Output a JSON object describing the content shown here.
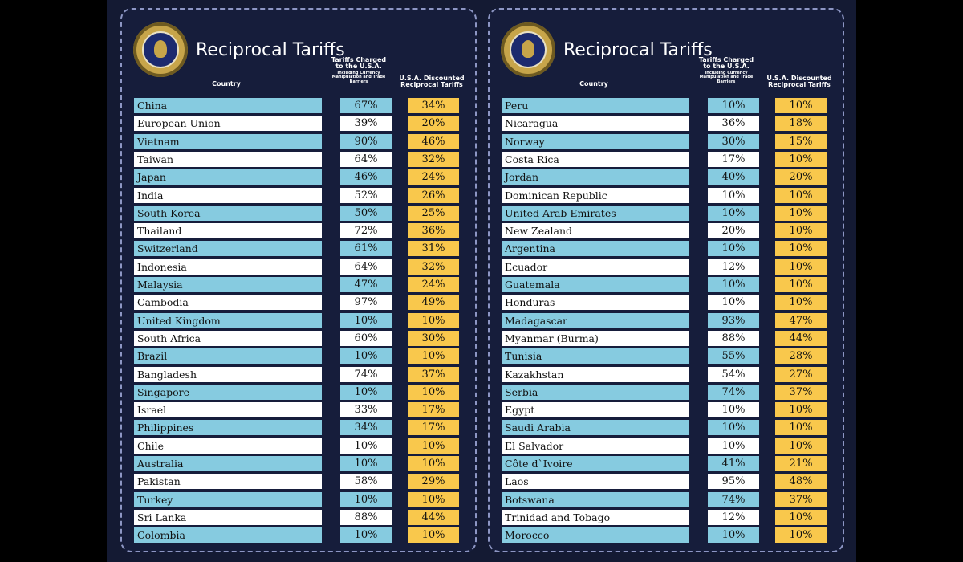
{
  "panels": [
    {
      "title": "Reciprocal Tariffs",
      "headers": {
        "country": "Country",
        "charged": "Tariffs Charged to the U.S.A.",
        "charged_sub": "Including Currency Manipulation and Trade Barriers",
        "discounted": "U.S.A. Discounted Reciprocal Tariffs"
      },
      "rows": [
        {
          "country": "China",
          "charged": "67%",
          "discounted": "34%"
        },
        {
          "country": "European Union",
          "charged": "39%",
          "discounted": "20%"
        },
        {
          "country": "Vietnam",
          "charged": "90%",
          "discounted": "46%"
        },
        {
          "country": "Taiwan",
          "charged": "64%",
          "discounted": "32%"
        },
        {
          "country": "Japan",
          "charged": "46%",
          "discounted": "24%"
        },
        {
          "country": "India",
          "charged": "52%",
          "discounted": "26%"
        },
        {
          "country": "South Korea",
          "charged": "50%",
          "discounted": "25%"
        },
        {
          "country": "Thailand",
          "charged": "72%",
          "discounted": "36%"
        },
        {
          "country": "Switzerland",
          "charged": "61%",
          "discounted": "31%"
        },
        {
          "country": "Indonesia",
          "charged": "64%",
          "discounted": "32%"
        },
        {
          "country": "Malaysia",
          "charged": "47%",
          "discounted": "24%"
        },
        {
          "country": "Cambodia",
          "charged": "97%",
          "discounted": "49%"
        },
        {
          "country": "United Kingdom",
          "charged": "10%",
          "discounted": "10%"
        },
        {
          "country": "South Africa",
          "charged": "60%",
          "discounted": "30%"
        },
        {
          "country": "Brazil",
          "charged": "10%",
          "discounted": "10%"
        },
        {
          "country": "Bangladesh",
          "charged": "74%",
          "discounted": "37%"
        },
        {
          "country": "Singapore",
          "charged": "10%",
          "discounted": "10%"
        },
        {
          "country": "Israel",
          "charged": "33%",
          "discounted": "17%"
        },
        {
          "country": "Philippines",
          "charged": "34%",
          "discounted": "17%"
        },
        {
          "country": "Chile",
          "charged": "10%",
          "discounted": "10%"
        },
        {
          "country": "Australia",
          "charged": "10%",
          "discounted": "10%"
        },
        {
          "country": "Pakistan",
          "charged": "58%",
          "discounted": "29%"
        },
        {
          "country": "Turkey",
          "charged": "10%",
          "discounted": "10%"
        },
        {
          "country": "Sri Lanka",
          "charged": "88%",
          "discounted": "44%"
        },
        {
          "country": "Colombia",
          "charged": "10%",
          "discounted": "10%"
        }
      ]
    },
    {
      "title": "Reciprocal Tariffs",
      "headers": {
        "country": "Country",
        "charged": "Tariffs Charged to the U.S.A.",
        "charged_sub": "Including Currency Manipulation and Trade Barriers",
        "discounted": "U.S.A. Discounted Reciprocal Tariffs"
      },
      "rows": [
        {
          "country": "Peru",
          "charged": "10%",
          "discounted": "10%"
        },
        {
          "country": "Nicaragua",
          "charged": "36%",
          "discounted": "18%"
        },
        {
          "country": "Norway",
          "charged": "30%",
          "discounted": "15%"
        },
        {
          "country": "Costa Rica",
          "charged": "17%",
          "discounted": "10%"
        },
        {
          "country": "Jordan",
          "charged": "40%",
          "discounted": "20%"
        },
        {
          "country": "Dominican Republic",
          "charged": "10%",
          "discounted": "10%"
        },
        {
          "country": "United Arab Emirates",
          "charged": "10%",
          "discounted": "10%"
        },
        {
          "country": "New Zealand",
          "charged": "20%",
          "discounted": "10%"
        },
        {
          "country": "Argentina",
          "charged": "10%",
          "discounted": "10%"
        },
        {
          "country": "Ecuador",
          "charged": "12%",
          "discounted": "10%"
        },
        {
          "country": "Guatemala",
          "charged": "10%",
          "discounted": "10%"
        },
        {
          "country": "Honduras",
          "charged": "10%",
          "discounted": "10%"
        },
        {
          "country": "Madagascar",
          "charged": "93%",
          "discounted": "47%"
        },
        {
          "country": "Myanmar (Burma)",
          "charged": "88%",
          "discounted": "44%"
        },
        {
          "country": "Tunisia",
          "charged": "55%",
          "discounted": "28%"
        },
        {
          "country": "Kazakhstan",
          "charged": "54%",
          "discounted": "27%"
        },
        {
          "country": "Serbia",
          "charged": "74%",
          "discounted": "37%"
        },
        {
          "country": "Egypt",
          "charged": "10%",
          "discounted": "10%"
        },
        {
          "country": "Saudi Arabia",
          "charged": "10%",
          "discounted": "10%"
        },
        {
          "country": "El Salvador",
          "charged": "10%",
          "discounted": "10%"
        },
        {
          "country": "Côte d`Ivoire",
          "charged": "41%",
          "discounted": "21%"
        },
        {
          "country": "Laos",
          "charged": "95%",
          "discounted": "48%"
        },
        {
          "country": "Botswana",
          "charged": "74%",
          "discounted": "37%"
        },
        {
          "country": "Trinidad and Tobago",
          "charged": "12%",
          "discounted": "10%"
        },
        {
          "country": "Morocco",
          "charged": "10%",
          "discounted": "10%"
        }
      ]
    }
  ],
  "colors": {
    "stage_background": "#141a33",
    "row_blue": "#86cbe0",
    "row_white": "#ffffff",
    "discount_yellow": "#f9c84c",
    "seal_gold": "#c7a54a"
  }
}
